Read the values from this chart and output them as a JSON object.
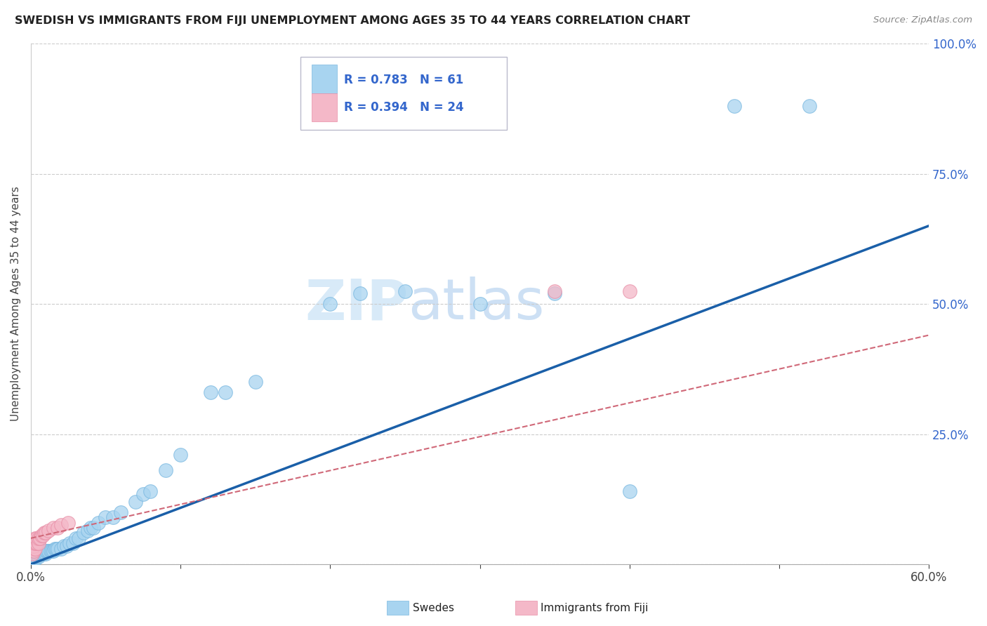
{
  "title": "SWEDISH VS IMMIGRANTS FROM FIJI UNEMPLOYMENT AMONG AGES 35 TO 44 YEARS CORRELATION CHART",
  "source": "Source: ZipAtlas.com",
  "ylabel": "Unemployment Among Ages 35 to 44 years",
  "xlim": [
    0.0,
    0.6
  ],
  "ylim": [
    0.0,
    1.0
  ],
  "swede_color": "#a8d4f0",
  "swede_edge_color": "#7ab8e0",
  "fiji_color": "#f4b8c8",
  "fiji_edge_color": "#e890a8",
  "swede_line_color": "#1a5fa8",
  "fiji_line_color": "#d06878",
  "watermark_color": "#d8eaf8",
  "legend_box_color": "#f0f4ff",
  "legend_text_color": "#3366cc",
  "legend_n_color": "#222244",
  "background_color": "#ffffff",
  "swedes_x": [
    0.001,
    0.001,
    0.002,
    0.002,
    0.003,
    0.003,
    0.003,
    0.004,
    0.004,
    0.005,
    0.005,
    0.005,
    0.006,
    0.006,
    0.007,
    0.007,
    0.008,
    0.008,
    0.009,
    0.009,
    0.01,
    0.01,
    0.011,
    0.012,
    0.013,
    0.014,
    0.015,
    0.016,
    0.017,
    0.018,
    0.02,
    0.022,
    0.024,
    0.026,
    0.028,
    0.03,
    0.032,
    0.035,
    0.038,
    0.04,
    0.042,
    0.045,
    0.05,
    0.055,
    0.06,
    0.07,
    0.075,
    0.08,
    0.09,
    0.1,
    0.12,
    0.13,
    0.15,
    0.2,
    0.22,
    0.25,
    0.3,
    0.35,
    0.47,
    0.52,
    0.4
  ],
  "swedes_y": [
    0.01,
    0.015,
    0.01,
    0.015,
    0.01,
    0.015,
    0.02,
    0.015,
    0.02,
    0.015,
    0.02,
    0.025,
    0.02,
    0.025,
    0.02,
    0.025,
    0.02,
    0.025,
    0.02,
    0.025,
    0.02,
    0.025,
    0.025,
    0.025,
    0.025,
    0.025,
    0.025,
    0.03,
    0.03,
    0.03,
    0.03,
    0.035,
    0.035,
    0.04,
    0.04,
    0.05,
    0.05,
    0.06,
    0.065,
    0.07,
    0.07,
    0.08,
    0.09,
    0.09,
    0.1,
    0.12,
    0.135,
    0.14,
    0.18,
    0.21,
    0.33,
    0.33,
    0.35,
    0.5,
    0.52,
    0.525,
    0.5,
    0.52,
    0.88,
    0.88,
    0.14
  ],
  "fiji_x": [
    0.001,
    0.001,
    0.002,
    0.002,
    0.002,
    0.003,
    0.003,
    0.003,
    0.004,
    0.004,
    0.005,
    0.005,
    0.006,
    0.007,
    0.008,
    0.009,
    0.01,
    0.012,
    0.015,
    0.018,
    0.02,
    0.025,
    0.35,
    0.4
  ],
  "fiji_y": [
    0.02,
    0.03,
    0.025,
    0.035,
    0.04,
    0.03,
    0.04,
    0.05,
    0.04,
    0.05,
    0.04,
    0.05,
    0.05,
    0.055,
    0.055,
    0.06,
    0.06,
    0.065,
    0.07,
    0.07,
    0.075,
    0.08,
    0.525,
    0.525
  ],
  "swede_trendline": [
    0.0,
    0.0,
    0.6,
    0.65
  ],
  "fiji_trendline": [
    0.0,
    0.05,
    0.6,
    0.44
  ]
}
